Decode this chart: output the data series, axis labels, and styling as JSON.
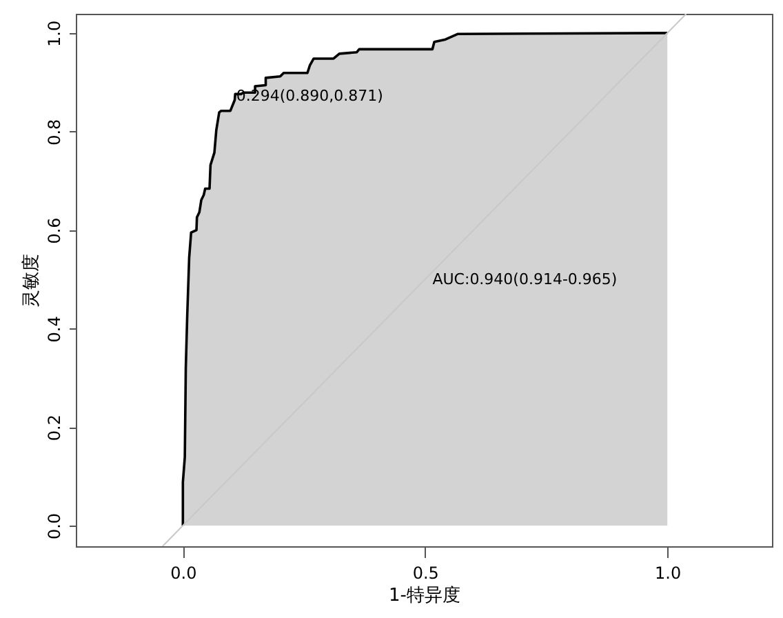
{
  "chart_data": {
    "type": "area",
    "xlabel": "1-特异度",
    "ylabel": "灵敏度",
    "xlim": [
      -0.221,
      1.216
    ],
    "ylim": [
      -0.042,
      1.039
    ],
    "xticks": [
      {
        "value": 0,
        "label": "0.0"
      },
      {
        "value": 0.5,
        "label": "0.5"
      },
      {
        "value": 1,
        "label": "1.0"
      }
    ],
    "yticks": [
      {
        "value": 0,
        "label": "0.0"
      },
      {
        "value": 0.2,
        "label": "0.2"
      },
      {
        "value": 0.4,
        "label": "0.4"
      },
      {
        "value": 0.6,
        "label": "0.6"
      },
      {
        "value": 0.8,
        "label": "0.8"
      },
      {
        "value": 1,
        "label": "1.0"
      }
    ],
    "grid": false,
    "series": [
      {
        "color": "#d3d3d3",
        "x": [
          0,
          0,
          0.004,
          0.006,
          0.009,
          0.013,
          0.017,
          0.028,
          0.029,
          0.034,
          0.038,
          0.043,
          0.046,
          0.055,
          0.057,
          0.065,
          0.069,
          0.075,
          0.079,
          0.098,
          0.107,
          0.108,
          0.12,
          0.125,
          0.149,
          0.149,
          0.171,
          0.171,
          0.201,
          0.208,
          0.257,
          0.262,
          0.27,
          0.311,
          0.323,
          0.359,
          0.364,
          0.515,
          0.519,
          0.542,
          0.567,
          1
        ],
        "values": [
          0,
          0.088,
          0.139,
          0.32,
          0.427,
          0.544,
          0.595,
          0.6,
          0.626,
          0.636,
          0.661,
          0.671,
          0.684,
          0.684,
          0.732,
          0.757,
          0.803,
          0.839,
          0.842,
          0.842,
          0.864,
          0.876,
          0.876,
          0.879,
          0.879,
          0.892,
          0.894,
          0.909,
          0.912,
          0.919,
          0.919,
          0.934,
          0.948,
          0.948,
          0.958,
          0.961,
          0.967,
          0.967,
          0.982,
          0.987,
          0.998,
          1
        ]
      },
      {
        "type": "line",
        "color": "#c8c8c8",
        "x": [
          -0.042,
          1.039
        ],
        "values": [
          -0.042,
          1.039
        ]
      }
    ],
    "annotations": [
      {
        "text": "0.294(0.890,0.871)",
        "x": 0.11,
        "y": 0.871
      },
      "AUC:0.940(0.914-0.965)"
    ]
  }
}
